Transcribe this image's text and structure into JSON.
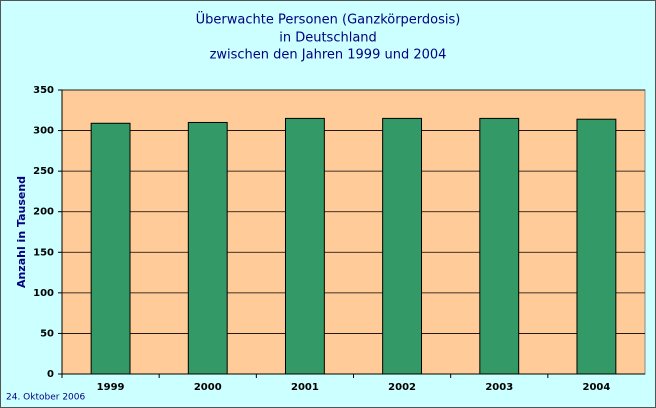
{
  "chart_data": {
    "type": "bar",
    "title": [
      "Überwachte Personen (Ganzkörperdosis)",
      "in Deutschland",
      "zwischen den Jahren 1999 und 2004"
    ],
    "y_label": "Anzahl in Tausend",
    "footer": "24. Oktober 2006",
    "categories": [
      "1999",
      "2000",
      "2001",
      "2002",
      "2003",
      "2004"
    ],
    "values": [
      309,
      310,
      315,
      315,
      315,
      314
    ],
    "color": "#339966",
    "ylim": [
      0,
      350
    ],
    "yticks": [
      0,
      50,
      100,
      150,
      200,
      250,
      300,
      350
    ],
    "grid": true
  }
}
